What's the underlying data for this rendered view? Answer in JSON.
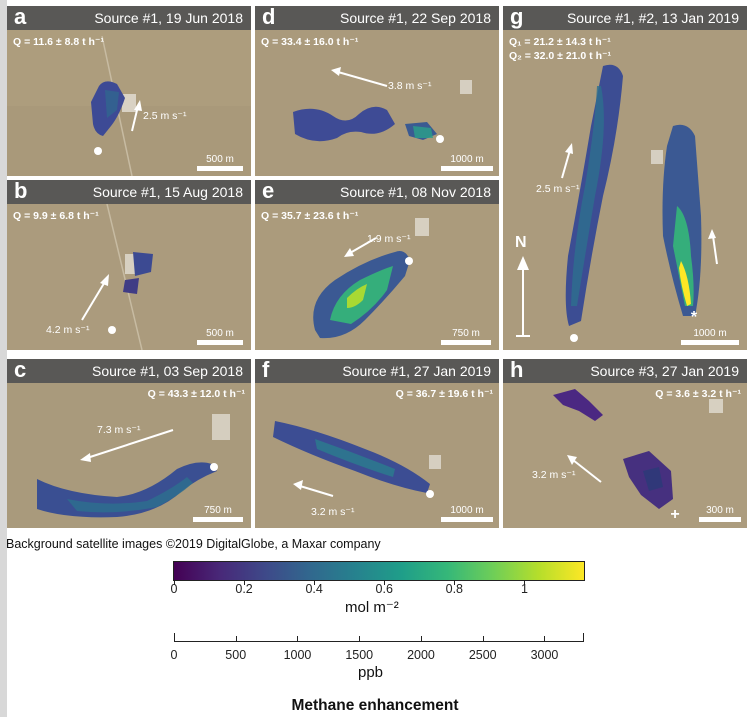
{
  "panels": [
    {
      "letter": "a",
      "title": "Source #1, 19 Jun 2018",
      "q1": "Q = 11.6 ± 8.8 t h⁻¹",
      "wind": "2.5 m s⁻¹",
      "scale": "500 m"
    },
    {
      "letter": "b",
      "title": "Source #1, 15 Aug 2018",
      "q1": "Q = 9.9 ± 6.8 t h⁻¹",
      "wind": "4.2 m s⁻¹",
      "scale": "500 m"
    },
    {
      "letter": "c",
      "title": "Source #1, 03 Sep 2018",
      "q1": "Q = 43.3 ± 12.0 t h⁻¹",
      "wind": "7.3 m s⁻¹",
      "scale": "750 m"
    },
    {
      "letter": "d",
      "title": "Source #1, 22 Sep 2018",
      "q1": "Q = 33.4 ± 16.0 t h⁻¹",
      "wind": "3.8 m s⁻¹",
      "scale": "1000 m"
    },
    {
      "letter": "e",
      "title": "Source #1, 08 Nov 2018",
      "q1": "Q = 35.7 ± 23.6 t h⁻¹",
      "wind": "1.9 m s⁻¹",
      "scale": "750 m"
    },
    {
      "letter": "f",
      "title": "Source #1, 27 Jan 2019",
      "q1": "Q = 36.7 ± 19.6 t h⁻¹",
      "wind": "3.2 m s⁻¹",
      "scale": "1000 m"
    },
    {
      "letter": "g",
      "title": "Source #1, #2, 13 Jan 2019",
      "q1": "Q₁ = 21.2 ± 14.3 t h⁻¹",
      "q2": "Q₂ = 32.0 ± 21.0 t h⁻¹",
      "wind": "2.5 m s⁻¹",
      "scale": "1000 m",
      "north": "N"
    },
    {
      "letter": "h",
      "title": "Source #3, 27 Jan 2019",
      "q1": "Q = 3.6 ± 3.2 t h⁻¹",
      "wind": "3.2 m s⁻¹",
      "scale": "300 m"
    }
  ],
  "credit": "Background satellite images ©2019 DigitalGlobe, a Maxar company",
  "colorbar": {
    "colors": [
      "#440154",
      "#482878",
      "#3e4989",
      "#31688e",
      "#26828e",
      "#1f9e89",
      "#35b779",
      "#6ece58",
      "#b5de2b",
      "#fde725"
    ],
    "mol_ticks": [
      "0",
      "0.2",
      "0.4",
      "0.6",
      "0.8",
      "1"
    ],
    "mol_unit": "mol m⁻²",
    "ppb_ticks": [
      "0",
      "500",
      "1000",
      "1500",
      "2000",
      "2500",
      "3000"
    ],
    "ppb_unit": "ppb"
  },
  "caption": "Methane enhancement"
}
